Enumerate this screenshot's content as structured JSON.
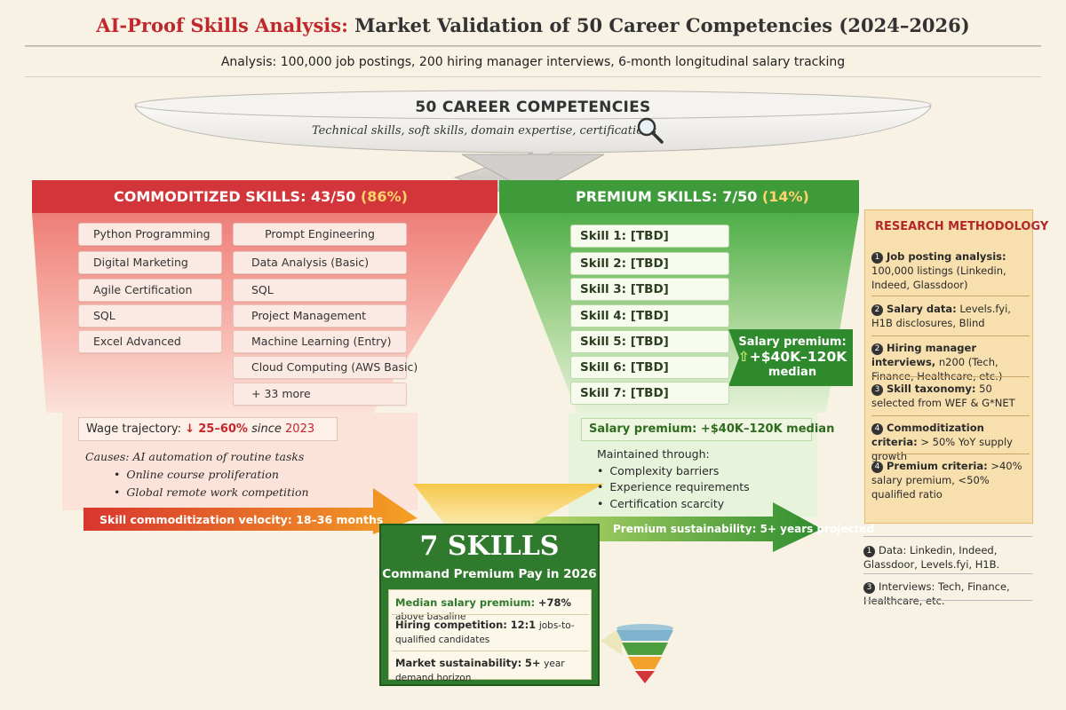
{
  "title": {
    "highlight": "AI-Proof Skills Analysis:",
    "rest": "Market Validation of 50 Career Competencies (2024–2026)"
  },
  "subtitle": "Analysis: 100,000 job postings, 200 hiring manager interviews, 6-month longitudinal salary tracking",
  "funnel": {
    "title": "50 CAREER COMPETENCIES",
    "subtitle": "Technical skills, soft skills, domain expertise, certifications",
    "icon": "magnifier-icon"
  },
  "commoditized": {
    "title": "COMMODITIZED SKILLS: 43/50",
    "pct": "(86%)",
    "left_skills": [
      "Python Programming",
      "Digital Marketing",
      "Agile Certification",
      "SQL",
      "Excel Advanced"
    ],
    "right_skills": [
      "Prompt Engineering",
      "Data Analysis (Basic)",
      "SQL",
      "Project Management",
      "Machine Learning (Entry)",
      "Cloud Computing (AWS Basic)",
      "+ 33 more"
    ],
    "wage_label": "Wage trajectory:",
    "wage_arrow": "↓",
    "wage_value": "25–60%",
    "wage_since": "since",
    "wage_year": "2023",
    "causes_label": "Causes: AI automation of routine tasks",
    "causes": [
      "Online course proliferation",
      "Global remote work competition"
    ],
    "velocity": "Skill commoditization velocity: 18–36 months",
    "color": "#d93a3a"
  },
  "premium": {
    "title": "PREMIUM SKILLS: 7/50",
    "pct": "(14%)",
    "skills": [
      "Skill 1: [TBD]",
      "Skill 2: [TBD]",
      "Skill 3: [TBD]",
      "Skill 4: [TBD]",
      "Skill 5: [TBD]",
      "Skill 6: [TBD]",
      "Skill 7: [TBD]"
    ],
    "callout_label": "Salary premium:",
    "callout_value": "+$40K–120K",
    "callout_unit": "median",
    "salary_box": "Salary premium: +$40K–120K median",
    "maintained_label": "Maintained through:",
    "maintained": [
      "Complexity barriers",
      "Experience requirements",
      "Certification scarcity"
    ],
    "sustain": "Premium sustainability: 5+ years projected",
    "color": "#3e9a3b"
  },
  "research": {
    "title": "RESEARCH METHODOLOGY",
    "items": [
      {
        "num": "1",
        "bold": "Job posting analysis:",
        "text": "100,000 listings (Linkedin, Indeed, Glassdoor)"
      },
      {
        "num": "2",
        "bold": "Salary data:",
        "text": "Levels.fyi, H1B disclosures, Blind"
      },
      {
        "num": "2",
        "bold": "Hiring manager interviews,",
        "text": "n200 (Tech, Finance, Healthcare, etc.)"
      },
      {
        "num": "3",
        "bold": "Skill taxonomy:",
        "text": "50 selected from WEF & G*NET"
      },
      {
        "num": "4",
        "bold": "Commoditization criteria:",
        "text": "> 50% YoY supply growth"
      },
      {
        "num": "4",
        "bold": "Premium criteria:",
        "text": ">40% salary premium, <50% qualified ratio"
      }
    ]
  },
  "footnotes": [
    {
      "num": "1",
      "text": "Data: Linkedin, Indeed, Glassdoor, Levels.fyi, H1B."
    },
    {
      "num": "3",
      "text": "Interviews: Tech, Finance, Healthcare, etc."
    }
  ],
  "result": {
    "title": "7 SKILLS",
    "subtitle": "Command Premium Pay in 2026",
    "median_label": "Median salary premium:",
    "median_value": "+78%",
    "median_tail": "above basaline",
    "competition_label": "Hiring competition:",
    "competition_value": "12:1",
    "competition_tail": "jobs-to-qualified candidates",
    "sustain_label": "Market sustainability:",
    "sustain_value": "5+",
    "sustain_tail": "year demand horizon",
    "icon": "mini-funnel-icon"
  }
}
